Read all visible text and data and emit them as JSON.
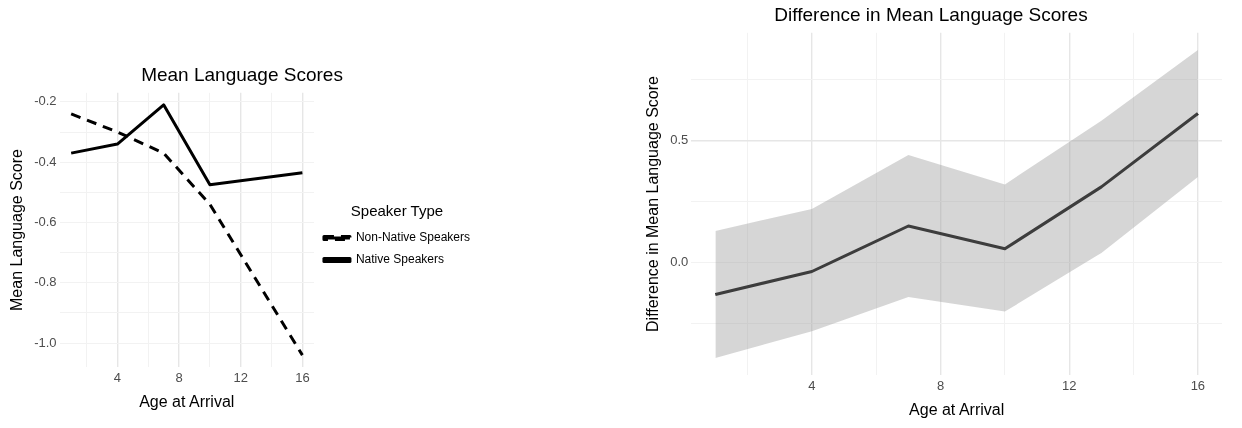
{
  "chart_data": [
    {
      "type": "line",
      "title": "Mean Language Scores",
      "xlabel": "Age at Arrival",
      "ylabel": "Mean Language Score",
      "legend_title": "Speaker Type",
      "legend": "right",
      "grid": true,
      "marker": "none",
      "x": [
        1,
        4,
        7,
        10,
        13,
        16
      ],
      "series": [
        {
          "name": "Non-Native Speakers",
          "color": "#000000",
          "line_style": "dashed",
          "values": [
            -0.24,
            -0.3,
            -0.37,
            -0.54,
            -0.79,
            -1.04
          ]
        },
        {
          "name": "Native Speakers",
          "color": "#000000",
          "line_style": "solid",
          "values": [
            -0.37,
            -0.34,
            -0.21,
            -0.475,
            -0.455,
            -0.435
          ]
        }
      ],
      "xlim": [
        0.25,
        16.75
      ],
      "xticks": [
        {
          "value": 2,
          "label": null
        },
        4,
        {
          "value": 6,
          "label": null
        },
        8,
        {
          "value": 10,
          "label": null
        },
        12,
        {
          "value": 14,
          "label": null
        },
        16
      ],
      "ylim": [
        -1.08,
        -0.17
      ],
      "yticks": [
        {
          "value": -1.0,
          "label": "-1.0"
        },
        {
          "value": -0.9,
          "label": null
        },
        {
          "value": -0.8,
          "label": "-0.8"
        },
        {
          "value": -0.7,
          "label": null
        },
        {
          "value": -0.6,
          "label": "-0.6"
        },
        {
          "value": -0.5,
          "label": null
        },
        {
          "value": -0.4,
          "label": "-0.4"
        },
        {
          "value": -0.3,
          "label": null
        },
        {
          "value": -0.2,
          "label": "-0.2"
        }
      ]
    },
    {
      "type": "line",
      "title": "Difference in Mean Language Scores",
      "xlabel": "Age at Arrival",
      "ylabel": "Difference in Mean Language Score",
      "grid": true,
      "marker": "none",
      "legend": false,
      "x": [
        1,
        4,
        7,
        10,
        13,
        16
      ],
      "series": [
        {
          "color": "#000000",
          "line_style": "solid",
          "values": [
            -0.13,
            -0.036,
            0.15,
            0.057,
            0.31,
            0.61
          ],
          "lower": [
            -0.39,
            -0.28,
            -0.14,
            -0.2,
            0.04,
            0.35
          ],
          "upper": [
            0.13,
            0.22,
            0.44,
            0.32,
            0.58,
            0.87
          ]
        }
      ],
      "xlim": [
        0.25,
        16.75
      ],
      "xticks": [
        {
          "value": 2,
          "label": null
        },
        4,
        {
          "value": 6,
          "label": null
        },
        8,
        {
          "value": 10,
          "label": null
        },
        12,
        {
          "value": 14,
          "label": null
        },
        16
      ],
      "ylim": [
        -0.46,
        0.94
      ],
      "yticks": [
        {
          "value": -0.25,
          "label": null
        },
        {
          "value": 0.0,
          "label": "0.0"
        },
        {
          "value": 0.25,
          "label": null
        },
        0.5,
        {
          "value": 0.75,
          "label": null
        }
      ]
    }
  ]
}
